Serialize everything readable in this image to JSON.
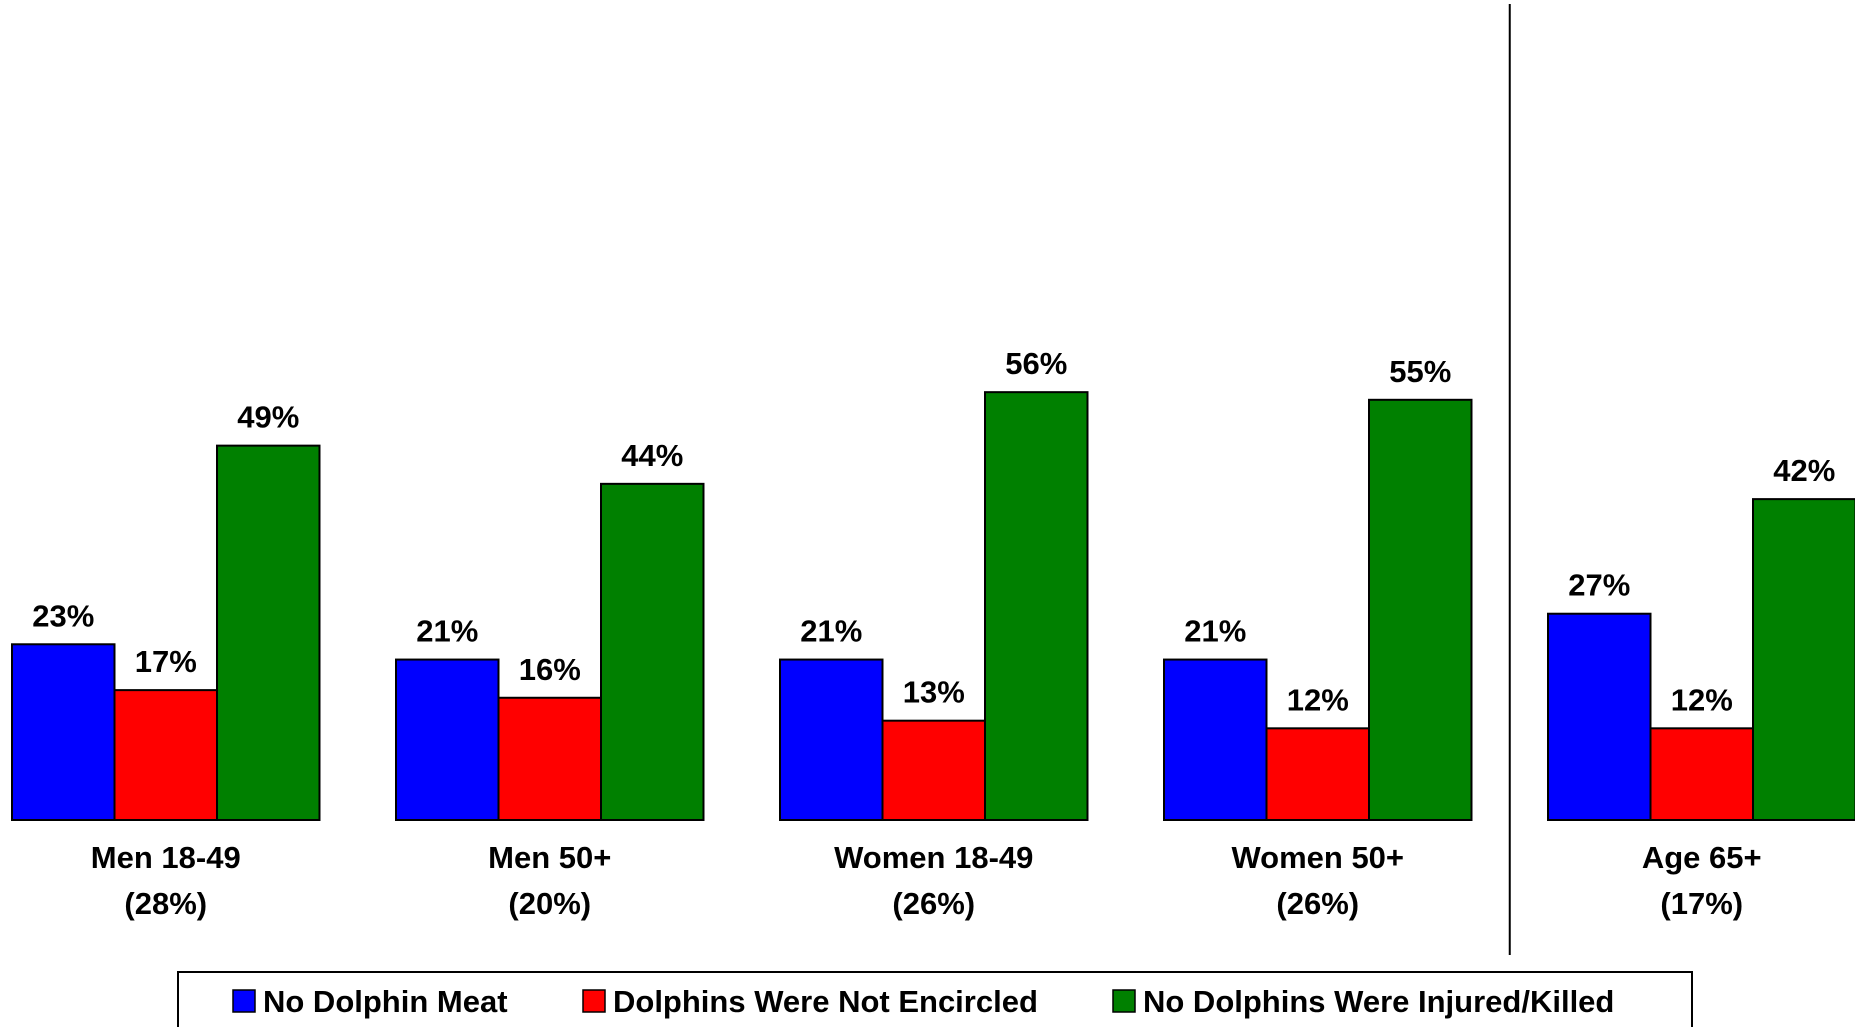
{
  "chart_data": {
    "type": "bar",
    "categories": [
      {
        "label": "Men 18-49",
        "sub": "(28%)"
      },
      {
        "label": "Men 50+",
        "sub": "(20%)"
      },
      {
        "label": "Women 18-49",
        "sub": "(26%)"
      },
      {
        "label": "Women 50+",
        "sub": "(26%)"
      },
      {
        "label": "Age 65+",
        "sub": "(17%)"
      }
    ],
    "series": [
      {
        "name": "No Dolphin Meat",
        "color": "#0000FF",
        "values": [
          23,
          21,
          21,
          21,
          27
        ],
        "labels": [
          "23%",
          "21%",
          "21%",
          "21%",
          "27%"
        ]
      },
      {
        "name": "Dolphins Were Not Encircled",
        "color": "#FF0000",
        "values": [
          17,
          16,
          13,
          12,
          12
        ],
        "labels": [
          "17%",
          "16%",
          "13%",
          "12%",
          "12%"
        ]
      },
      {
        "name": "No Dolphins Were Injured/Killed",
        "color": "#008000",
        "values": [
          49,
          44,
          56,
          55,
          42
        ],
        "labels": [
          "49%",
          "44%",
          "56%",
          "55%",
          "42%"
        ]
      }
    ],
    "ylim": [
      0,
      90
    ],
    "grid": false,
    "legend_position": "bottom",
    "separator_after_category": 3
  }
}
